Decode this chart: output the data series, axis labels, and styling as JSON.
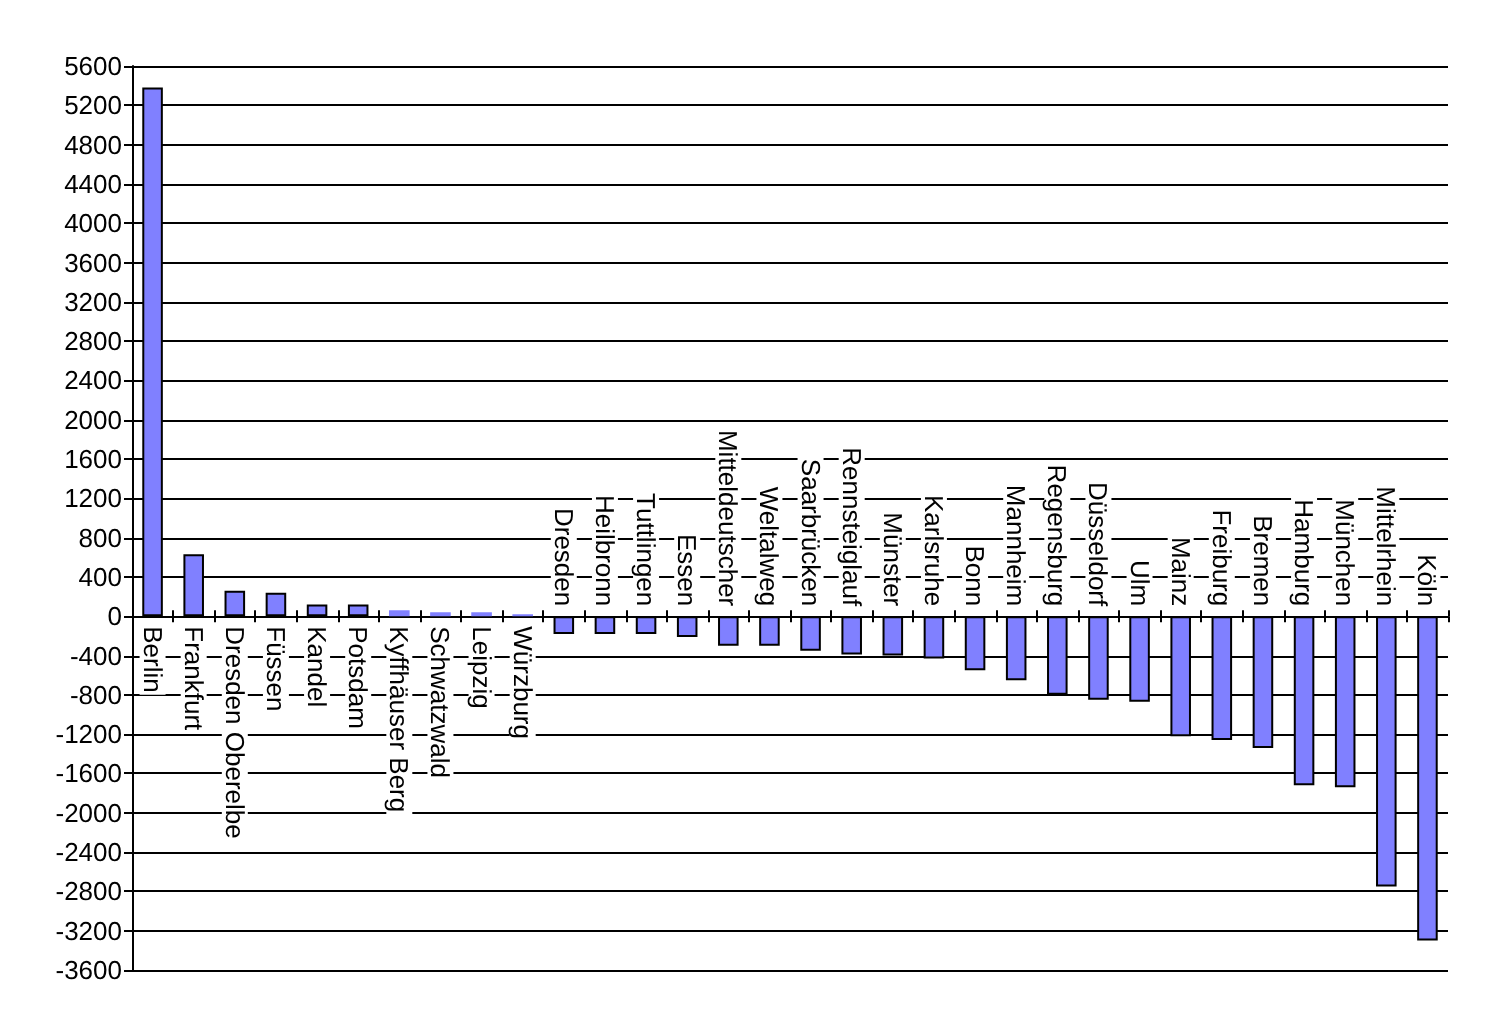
{
  "chart_data": {
    "type": "bar",
    "categories": [
      "Berlin",
      "Frankfurt",
      "Dresden Oberelbe",
      "Füssen",
      "Kandel",
      "Potsdam",
      "Kyffhäuser Berg",
      "Schwatzwald",
      "Leipzig",
      "Würzburg",
      "Dresden",
      "Heilbronn",
      "Tuttlingen",
      "Essen",
      "Mitteldeutscher",
      "Weltalweg",
      "Saarbrücken",
      "Rennsteiglauf",
      "Münster",
      "Karlsruhe",
      "Bonn",
      "Mannheim",
      "Regensburg",
      "Düsseldorf",
      "Ulm",
      "Mainz",
      "Freiburg",
      "Bremen",
      "Hamburg",
      "München",
      "Mittelrhein",
      "Köln"
    ],
    "values": [
      5380,
      630,
      260,
      240,
      120,
      120,
      60,
      40,
      40,
      20,
      -180,
      -180,
      -180,
      -210,
      -300,
      -300,
      -350,
      -390,
      -400,
      -430,
      -550,
      -650,
      -800,
      -850,
      -870,
      -1220,
      -1260,
      -1340,
      -1720,
      -1740,
      -2750,
      -3300
    ],
    "color": "#8080ff",
    "ylim": [
      -3600,
      5600
    ],
    "yticks": [
      -3600,
      -3200,
      -2800,
      -2400,
      -2000,
      -1600,
      -1200,
      -800,
      -400,
      0,
      400,
      800,
      1200,
      1600,
      2000,
      2400,
      2800,
      3200,
      3600,
      4000,
      4400,
      4800,
      5200,
      5600
    ],
    "grid": "y"
  }
}
